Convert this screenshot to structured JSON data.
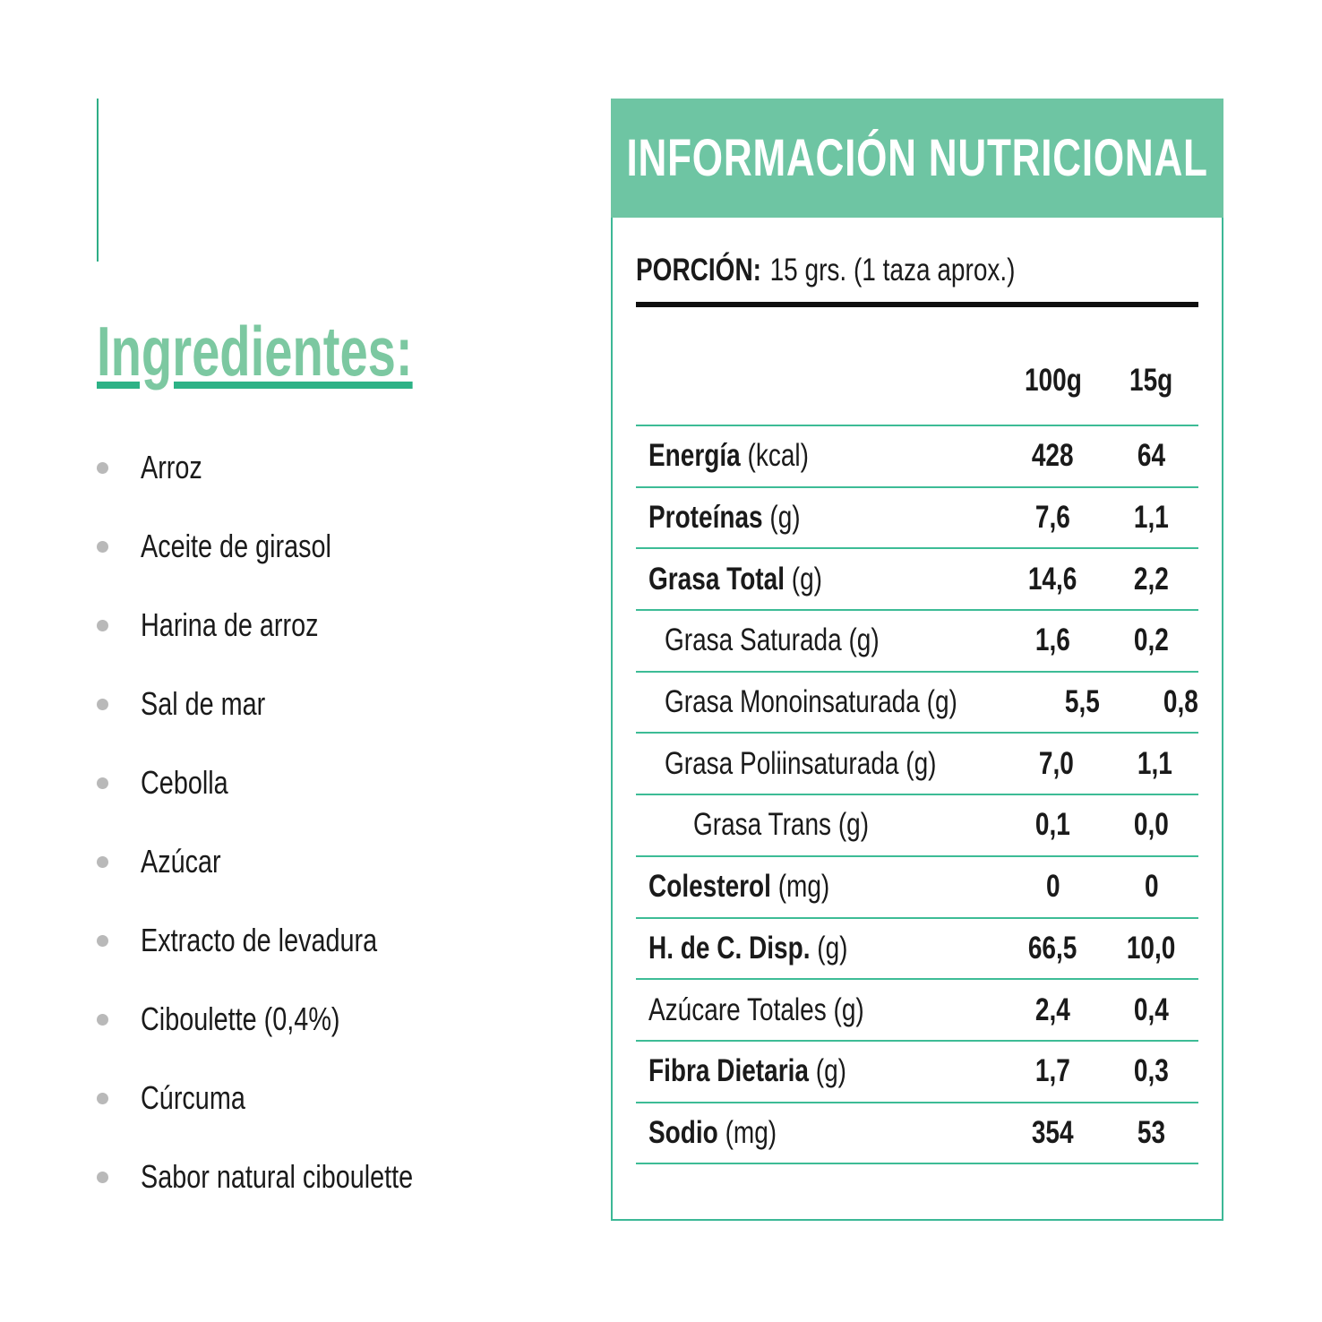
{
  "ingredients": {
    "heading": "Ingredientes:",
    "items": [
      "Arroz",
      "Aceite de girasol",
      "Harina de arroz",
      "Sal de mar",
      "Cebolla",
      "Azúcar",
      "Extracto de levadura",
      "Ciboulette (0,4%)",
      "Cúrcuma",
      "Sabor natural ciboulette"
    ]
  },
  "nutrition": {
    "title": "INFORMACIÓN NUTRICIONAL",
    "portion_label": "PORCIÓN:",
    "portion_value": "15 grs. (1 taza aprox.)",
    "columns": [
      "100g",
      "15g"
    ],
    "rows": [
      {
        "label": "Energía",
        "unit": "(kcal)",
        "bold": true,
        "indent": 0,
        "values": [
          "428",
          "64"
        ]
      },
      {
        "label": "Proteínas",
        "unit": "(g)",
        "bold": true,
        "indent": 0,
        "values": [
          "7,6",
          "1,1"
        ]
      },
      {
        "label": "Grasa Total",
        "unit": "(g)",
        "bold": true,
        "indent": 0,
        "values": [
          "14,6",
          "2,2"
        ]
      },
      {
        "label": "Grasa Saturada",
        "unit": "(g)",
        "bold": false,
        "indent": 1,
        "values": [
          "1,6",
          "0,2"
        ]
      },
      {
        "label": "Grasa Monoinsaturada",
        "unit": "(g)",
        "bold": false,
        "indent": 1,
        "values": [
          "5,5",
          "0,8"
        ]
      },
      {
        "label": "Grasa Poliinsaturada",
        "unit": "(g)",
        "bold": false,
        "indent": 1,
        "values": [
          "7,0",
          "1,1"
        ]
      },
      {
        "label": "Grasa Trans",
        "unit": "(g)",
        "bold": false,
        "indent": 2,
        "values": [
          "0,1",
          "0,0"
        ]
      },
      {
        "label": "Colesterol",
        "unit": "(mg)",
        "bold": true,
        "indent": 0,
        "values": [
          "0",
          "0"
        ]
      },
      {
        "label": "H. de C. Disp.",
        "unit": "(g)",
        "bold": true,
        "indent": 0,
        "values": [
          "66,5",
          "10,0"
        ]
      },
      {
        "label": "Azúcare Totales",
        "unit": "(g)",
        "bold": false,
        "indent": 0,
        "values": [
          "2,4",
          "0,4"
        ]
      },
      {
        "label": "Fibra Dietaria",
        "unit": "(g)",
        "bold": true,
        "indent": 0,
        "values": [
          "1,7",
          "0,3"
        ]
      },
      {
        "label": "Sodio",
        "unit": "(mg)",
        "bold": true,
        "indent": 0,
        "values": [
          "354",
          "53"
        ]
      }
    ]
  },
  "colors": {
    "band-green": "#6EC5A3",
    "border-green": "#3CB896",
    "separator-green": "#3DBC96",
    "heading-green": "#7CC8A1",
    "underline-green": "#2DB286",
    "accent-line-green": "#2EAE86",
    "bullet-gray": "#B9B9B9",
    "text-dark": "#1A1A1A"
  }
}
